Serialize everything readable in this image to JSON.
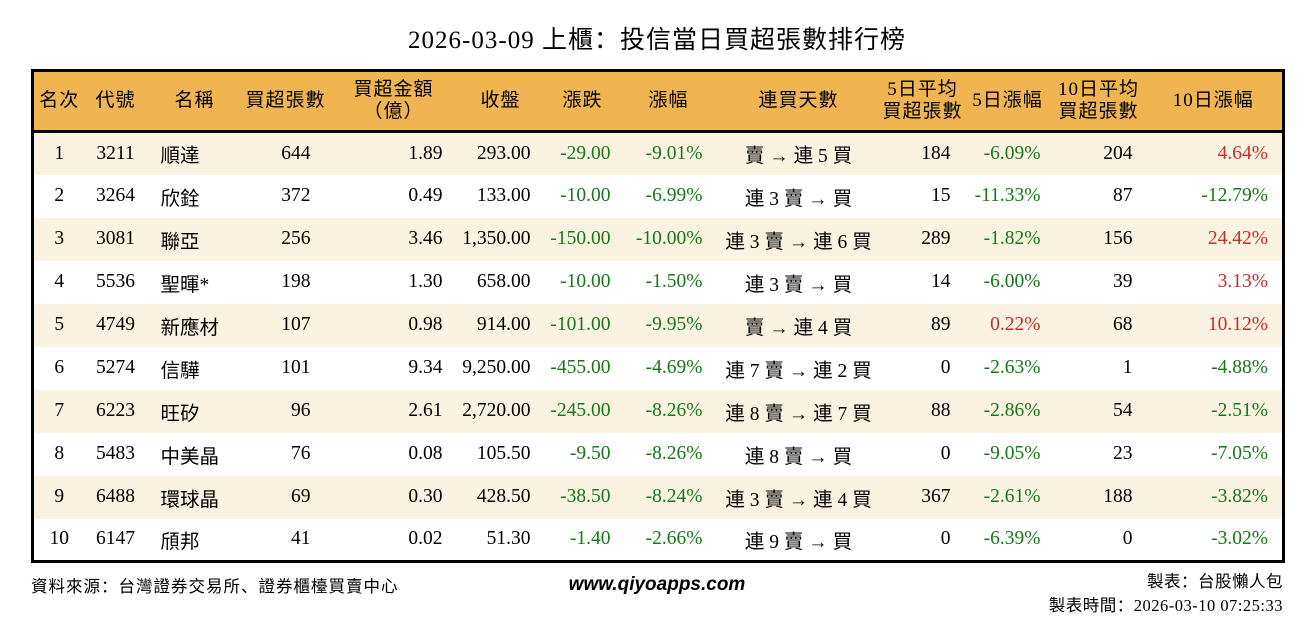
{
  "title": "2026-03-09 上櫃：投信當日買超張數排行榜",
  "colors": {
    "header_bg": "#F0B550",
    "row_stripe_bg": "#FAF3E1",
    "row_bg": "#FFFFFF",
    "positive_red": "#CE2A2A",
    "negative_green": "#177817",
    "border": "#000000"
  },
  "table": {
    "columns": [
      {
        "key": "rank",
        "label": "名次",
        "align": "center"
      },
      {
        "key": "code",
        "label": "代號",
        "align": "center"
      },
      {
        "key": "name",
        "label": "名稱",
        "align": "left"
      },
      {
        "key": "net_buy",
        "label": "買超張數",
        "align": "right"
      },
      {
        "key": "amount",
        "label": "買超金額\n（億）",
        "align": "right"
      },
      {
        "key": "close",
        "label": "收盤",
        "align": "right"
      },
      {
        "key": "change",
        "label": "漲跌",
        "align": "right",
        "signColored": true
      },
      {
        "key": "change_pct",
        "label": "漲幅",
        "align": "right",
        "signColored": true
      },
      {
        "key": "streak",
        "label": "連買天數",
        "align": "center"
      },
      {
        "key": "avg5",
        "label": "5日平均\n買超張數",
        "align": "right"
      },
      {
        "key": "pct5",
        "label": "5日漲幅",
        "align": "right",
        "signColored": true
      },
      {
        "key": "avg10",
        "label": "10日平均\n買超張數",
        "align": "right"
      },
      {
        "key": "pct10",
        "label": "10日漲幅",
        "align": "right",
        "signColored": true
      }
    ],
    "rows": [
      [
        "1",
        "3211",
        "順達",
        "644",
        "1.89",
        "293.00",
        "-29.00",
        "-9.01%",
        "賣 → 連 5 買",
        "184",
        "-6.09%",
        "204",
        "4.64%"
      ],
      [
        "2",
        "3264",
        "欣銓",
        "372",
        "0.49",
        "133.00",
        "-10.00",
        "-6.99%",
        "連 3 賣 → 買",
        "15",
        "-11.33%",
        "87",
        "-12.79%"
      ],
      [
        "3",
        "3081",
        "聯亞",
        "256",
        "3.46",
        "1,350.00",
        "-150.00",
        "-10.00%",
        "連 3 賣 → 連 6 買",
        "289",
        "-1.82%",
        "156",
        "24.42%"
      ],
      [
        "4",
        "5536",
        "聖暉*",
        "198",
        "1.30",
        "658.00",
        "-10.00",
        "-1.50%",
        "連 3 賣 → 買",
        "14",
        "-6.00%",
        "39",
        "3.13%"
      ],
      [
        "5",
        "4749",
        "新應材",
        "107",
        "0.98",
        "914.00",
        "-101.00",
        "-9.95%",
        "賣 → 連 4 買",
        "89",
        "0.22%",
        "68",
        "10.12%"
      ],
      [
        "6",
        "5274",
        "信驊",
        "101",
        "9.34",
        "9,250.00",
        "-455.00",
        "-4.69%",
        "連 7 賣 → 連 2 買",
        "0",
        "-2.63%",
        "1",
        "-4.88%"
      ],
      [
        "7",
        "6223",
        "旺矽",
        "96",
        "2.61",
        "2,720.00",
        "-245.00",
        "-8.26%",
        "連 8 賣 → 連 7 買",
        "88",
        "-2.86%",
        "54",
        "-2.51%"
      ],
      [
        "8",
        "5483",
        "中美晶",
        "76",
        "0.08",
        "105.50",
        "-9.50",
        "-8.26%",
        "連 8 賣 → 買",
        "0",
        "-9.05%",
        "23",
        "-7.05%"
      ],
      [
        "9",
        "6488",
        "環球晶",
        "69",
        "0.30",
        "428.50",
        "-38.50",
        "-8.24%",
        "連 3 賣 → 連 4 買",
        "367",
        "-2.61%",
        "188",
        "-3.82%"
      ],
      [
        "10",
        "6147",
        "頎邦",
        "41",
        "0.02",
        "51.30",
        "-1.40",
        "-2.66%",
        "連 9 賣 → 買",
        "0",
        "-6.39%",
        "0",
        "-3.02%"
      ]
    ]
  },
  "footer": {
    "source": "資料來源：台灣證券交易所、證券櫃檯買賣中心",
    "website": "www.qiyoapps.com",
    "author": "製表：台股懶人包",
    "generated_at": "製表時間：2026-03-10 07:25:33"
  }
}
